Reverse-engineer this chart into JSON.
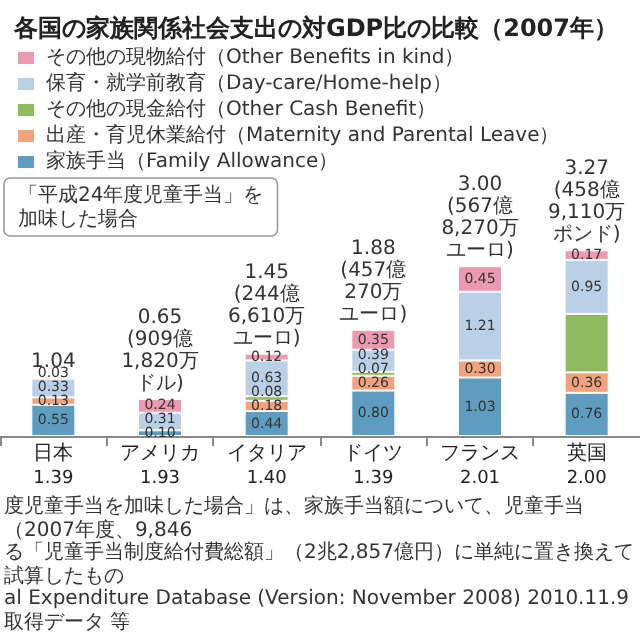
{
  "chart_data": {
    "type": "bar",
    "title": "各国の家族関係社会支出の対GDP比の比較（2007年）",
    "categories": [
      "日本",
      "アメリカ",
      "イタリア",
      "ドイツ",
      "フランス",
      "英国"
    ],
    "series": [
      {
        "name": "家族手当（Family Allowance）",
        "color": "#5e9cc0",
        "values": [
          0.55,
          0.1,
          0.44,
          0.8,
          1.03,
          0.76
        ],
        "value_labels": [
          "0.55",
          "0.10",
          "0.44",
          "0.80",
          "1.03",
          "0.76"
        ]
      },
      {
        "name": "出産・育児休業給付（Maternity and Parental Leave）",
        "color": "#f2a27c",
        "values": [
          0.13,
          null,
          0.18,
          0.26,
          0.3,
          0.36
        ],
        "value_labels": [
          "0.13",
          null,
          "0.18",
          "0.26",
          "0.30",
          "0.36"
        ]
      },
      {
        "name": "その他の現金給付（Other Cash Benefit）",
        "color": "#8fba5e",
        "values": [
          null,
          null,
          0.08,
          0.07,
          null,
          1.03
        ],
        "value_labels": [
          null,
          null,
          "0.08",
          "0.07",
          null,
          null
        ]
      },
      {
        "name": "保育・就学前教育（Day-care/Home-help）",
        "color": "#b9d0e6",
        "values": [
          0.33,
          0.31,
          0.63,
          0.39,
          1.21,
          0.95
        ],
        "value_labels": [
          "0.33",
          "0.31",
          "0.63",
          "0.39",
          "1.21",
          "0.95"
        ]
      },
      {
        "name": "その他の現物給付（Other Benefits in kind）",
        "color": "#eb9ab2",
        "values": [
          0.03,
          0.24,
          0.12,
          0.35,
          0.45,
          0.17
        ],
        "value_labels": [
          "0.03",
          "0.24",
          "0.12",
          "0.35",
          "0.45",
          "0.17"
        ]
      }
    ],
    "stacked": true,
    "ylim": [
      0,
      5
    ],
    "tick_labels": "x",
    "legend": "top left",
    "totals": [
      "1.04",
      "0.65\n(909億1,820万ドル)",
      "1.45\n(244億6,610万ユーロ)",
      "1.88\n(457億270万ユーロ)",
      "3.00\n(567億8,270万ユーロ)",
      "3.27\n(458億9,110万ポンド)"
    ],
    "annotations": [
      "「平成24年度児童手当」を加味した場合",
      "1.39",
      "1.93",
      "1.40",
      "1.39",
      "2.01",
      "2.00",
      "度児童手当を加味した場合」は、家族手当額について、児童手当（2007年度、9,846",
      "る「児童手当制度給付費総額」（2兆2,857億円）に単純に置き換えて試算したもの",
      "al Expenditure Database (Version: November 2008) 2010.11.9取得データ 等"
    ]
  }
}
